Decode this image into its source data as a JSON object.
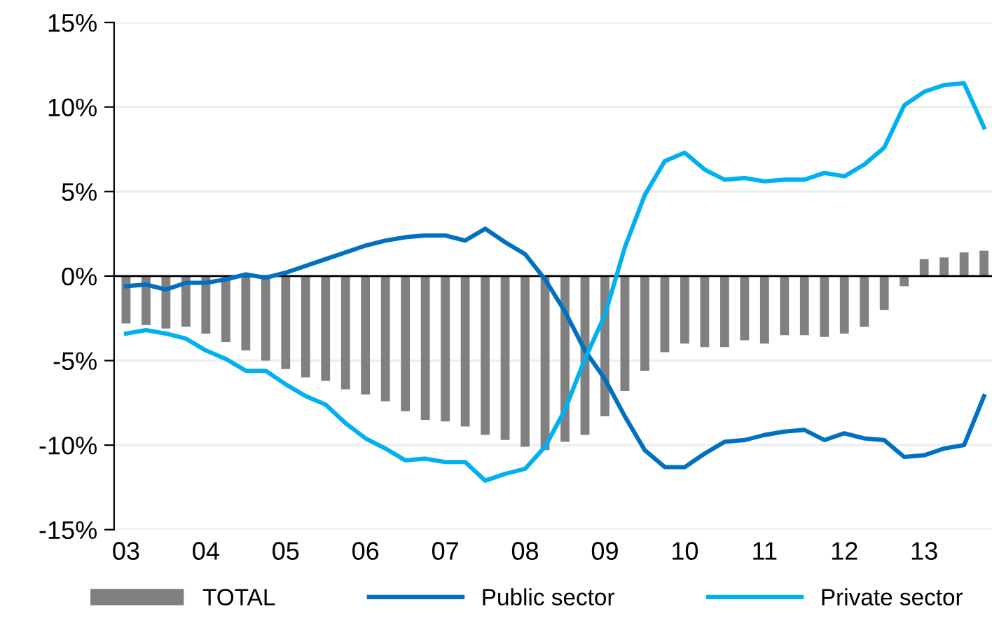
{
  "chart_data": {
    "type": "bar",
    "categories": [
      "03",
      null,
      null,
      null,
      "04",
      null,
      null,
      null,
      "05",
      null,
      null,
      null,
      "06",
      null,
      null,
      null,
      "07",
      null,
      null,
      null,
      "08",
      null,
      null,
      null,
      "09",
      null,
      null,
      null,
      "10",
      null,
      null,
      null,
      "11",
      null,
      null,
      null,
      "12",
      null,
      null,
      null,
      "13",
      null,
      null,
      null
    ],
    "series": [
      {
        "name": "TOTAL",
        "color": "#808080",
        "values": [
          -2.8,
          -2.9,
          -3.1,
          -3.0,
          -3.4,
          -3.9,
          -4.4,
          -5.0,
          -5.5,
          -6.0,
          -6.2,
          -6.7,
          -7.0,
          -7.4,
          -8.0,
          -8.5,
          -8.6,
          -8.9,
          -9.4,
          -9.7,
          -10.1,
          -10.3,
          -9.8,
          -9.4,
          -8.3,
          -6.8,
          -5.6,
          -4.5,
          -4.0,
          -4.2,
          -4.2,
          -3.8,
          -4.0,
          -3.5,
          -3.5,
          -3.6,
          -3.4,
          -3.0,
          -2.0,
          -0.6,
          1.0,
          1.1,
          1.4,
          1.5
        ]
      },
      {
        "name": "Public sector",
        "type": "line",
        "color": "#0070c0",
        "values": [
          -0.6,
          -0.5,
          -0.8,
          -0.4,
          -0.4,
          -0.2,
          0.1,
          -0.1,
          0.2,
          0.6,
          1.0,
          1.4,
          1.8,
          2.1,
          2.3,
          2.4,
          2.4,
          2.1,
          2.8,
          2.0,
          1.3,
          -0.2,
          -2.1,
          -4.4,
          -6.1,
          -8.3,
          -10.3,
          -11.3,
          -11.3,
          -10.5,
          -9.8,
          -9.7,
          -9.4,
          -9.2,
          -9.1,
          -9.7,
          -9.3,
          -9.6,
          -9.7,
          -10.7,
          -10.6,
          -10.2,
          -10.0,
          -7.1
        ]
      },
      {
        "name": "Private sector",
        "type": "line",
        "color": "#00b0f0",
        "values": [
          -3.4,
          -3.2,
          -3.4,
          -3.7,
          -4.4,
          -4.9,
          -5.6,
          -5.6,
          -6.4,
          -7.1,
          -7.6,
          -8.7,
          -9.6,
          -10.2,
          -10.9,
          -10.8,
          -11.0,
          -11.0,
          -12.1,
          -11.7,
          -11.4,
          -10.1,
          -7.9,
          -4.9,
          -2.3,
          1.7,
          4.8,
          6.8,
          7.3,
          6.3,
          5.7,
          5.8,
          5.6,
          5.7,
          5.7,
          6.1,
          5.9,
          6.6,
          7.6,
          10.1,
          10.9,
          11.3,
          11.4,
          8.8
        ]
      }
    ],
    "ylim": [
      -15,
      15
    ],
    "yticks": [
      {
        "value": -15,
        "label": "-15%"
      },
      {
        "value": -10,
        "label": "-10%"
      },
      {
        "value": -5,
        "label": "-5%"
      },
      {
        "value": 0,
        "label": "0%"
      },
      {
        "value": 5,
        "label": "5%"
      },
      {
        "value": 10,
        "label": "10%"
      },
      {
        "value": 15,
        "label": "15%"
      }
    ],
    "ref_lines": [
      {
        "axis": "y",
        "value": 0,
        "color": "#000000"
      }
    ],
    "grid": "y",
    "legend": "bottom",
    "marker": "none",
    "line_style": "solid"
  }
}
